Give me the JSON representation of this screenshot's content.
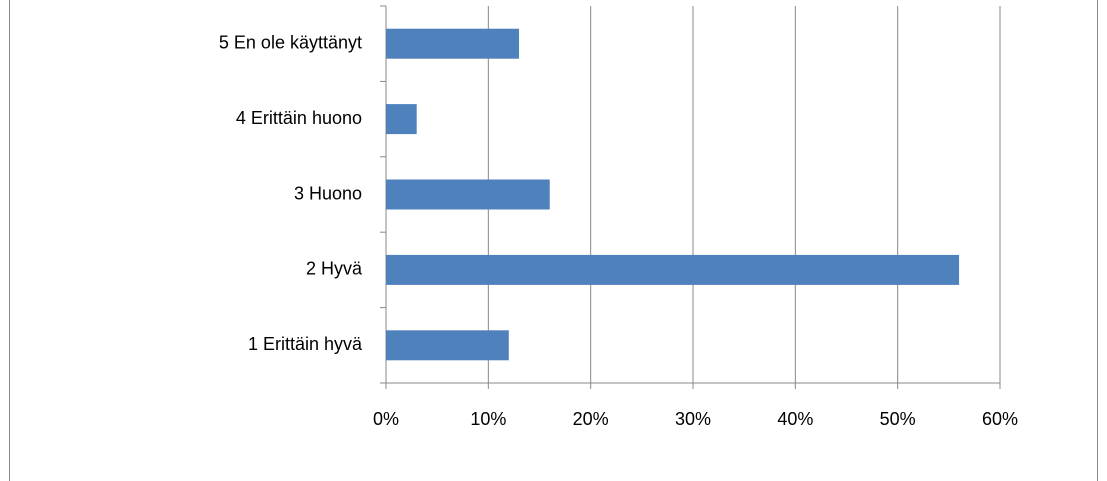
{
  "chart_data": {
    "type": "bar",
    "orientation": "horizontal",
    "categories": [
      "5 En ole käyttänyt",
      "4 Erittäin huono",
      "3 Huono",
      "2 Hyvä",
      "1 Erittäin hyvä"
    ],
    "values": [
      13,
      3,
      16,
      56,
      12
    ],
    "color": "#4f81bd",
    "xlim": [
      0,
      60
    ],
    "xticks": [
      {
        "value": 0,
        "label": "0%"
      },
      {
        "value": 10,
        "label": "10%"
      },
      {
        "value": 20,
        "label": "20%"
      },
      {
        "value": 30,
        "label": "30%"
      },
      {
        "value": 40,
        "label": "40%"
      },
      {
        "value": 50,
        "label": "50%"
      },
      {
        "value": 60,
        "label": "60%"
      }
    ],
    "grid": true
  }
}
